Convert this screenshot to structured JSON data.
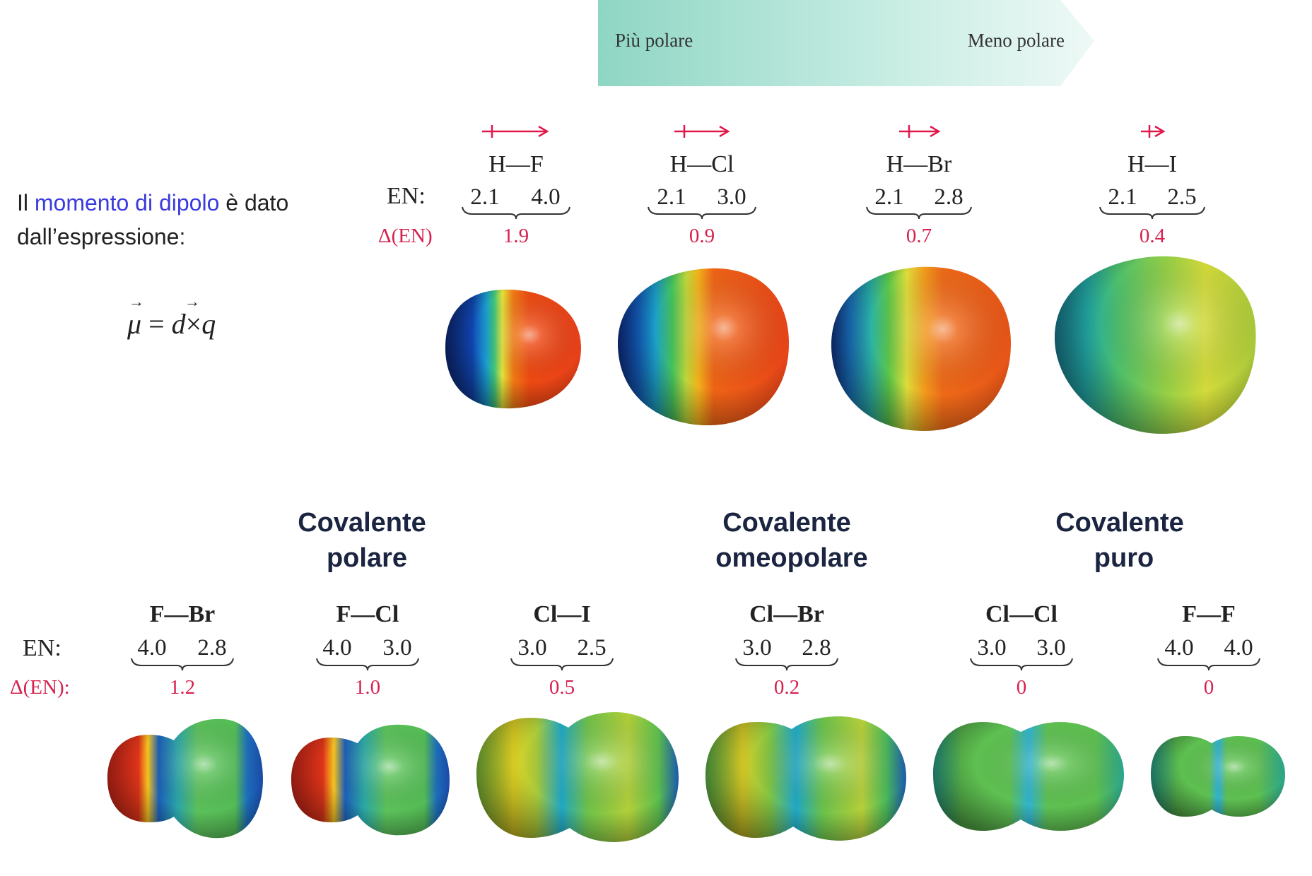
{
  "banner": {
    "left_label": "Più polare",
    "right_label": "Meno polare"
  },
  "intro": {
    "line1_prefix": "Il ",
    "line1_highlight": "momento di dipolo",
    "line1_suffix": " è dato",
    "line2": "dall’espressione:",
    "formula_mu": "μ",
    "formula_eq": " = ",
    "formula_d": "d",
    "formula_times": "×",
    "formula_q": "q",
    "vector_arrow": "→"
  },
  "top_row": {
    "en_label": "EN:",
    "den_label": "Δ(EN)",
    "molecules": [
      {
        "formula": "H—F",
        "en_left": "2.1",
        "en_right": "4.0",
        "delta": "1.9"
      },
      {
        "formula": "H—Cl",
        "en_left": "2.1",
        "en_right": "3.0",
        "delta": "0.9"
      },
      {
        "formula": "H—Br",
        "en_left": "2.1",
        "en_right": "2.8",
        "delta": "0.7"
      },
      {
        "formula": "H—I",
        "en_left": "2.1",
        "en_right": "2.5",
        "delta": "0.4"
      }
    ]
  },
  "categories": [
    {
      "line1": "Covalente",
      "line2": "polare"
    },
    {
      "line1": "Covalente",
      "line2": "omeopolare"
    },
    {
      "line1": "Covalente",
      "line2": "puro"
    }
  ],
  "bottom_row": {
    "en_label": "EN:",
    "den_label": "Δ(EN):",
    "molecules": [
      {
        "formula": "F—Br",
        "en_left": "4.0",
        "en_right": "2.8",
        "delta": "1.2"
      },
      {
        "formula": "F—Cl",
        "en_left": "4.0",
        "en_right": "3.0",
        "delta": "1.0"
      },
      {
        "formula": "Cl—I",
        "en_left": "3.0",
        "en_right": "2.5",
        "delta": "0.5"
      },
      {
        "formula": "Cl—Br",
        "en_left": "3.0",
        "en_right": "2.8",
        "delta": "0.2"
      },
      {
        "formula": "Cl—Cl",
        "en_left": "3.0",
        "en_right": "3.0",
        "delta": "0"
      },
      {
        "formula": "F—F",
        "en_left": "4.0",
        "en_right": "4.0",
        "delta": "0"
      }
    ]
  },
  "colors": {
    "delta_red": "#d6214f",
    "dipole_red": "#e0194a",
    "highlight_blue": "#3b3bdc",
    "category_navy": "#1b2440",
    "banner_teal": "#8fd6c4"
  }
}
